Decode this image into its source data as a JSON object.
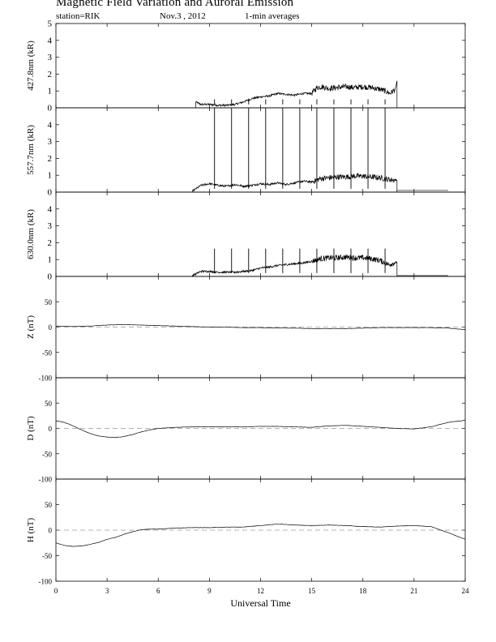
{
  "header": {
    "title": "Magnetic Field Variation and Auroral Emission",
    "station": "station=RIK",
    "date": "Nov.3 , 2012",
    "averaging": "1-min averages"
  },
  "chart_data": [
    {
      "type": "line",
      "ylabel": "427.8nm (kR)",
      "ylim": [
        0,
        5
      ],
      "yticks": [
        0,
        1,
        2,
        3,
        4,
        5
      ],
      "series": [
        {
          "x": [
            8.2,
            8.5,
            9,
            9.5,
            10,
            10.5,
            11,
            11.5,
            12,
            12.5,
            13,
            13.5,
            14,
            14.5,
            15,
            15.3,
            15.6,
            16,
            16.5,
            17,
            17.5,
            18,
            18.5,
            19,
            19.3,
            19.6,
            19.9,
            20.0
          ],
          "y": [
            0.35,
            0.2,
            0.2,
            0.15,
            0.15,
            0.2,
            0.35,
            0.55,
            0.65,
            0.7,
            0.85,
            0.8,
            0.75,
            0.85,
            0.85,
            1.2,
            1.25,
            1.15,
            1.2,
            1.25,
            1.2,
            1.25,
            1.2,
            1.1,
            1.0,
            0.85,
            1.1,
            1.6
          ]
        }
      ],
      "spikes": {
        "x": [
          9.3,
          10.3,
          11.3,
          12.3,
          13.3,
          14.3,
          15.3,
          16.3,
          17.3,
          18.3,
          19.3
        ],
        "y": 0.5
      }
    },
    {
      "type": "line",
      "ylabel": "557.7nm (kR)",
      "ylim": [
        0,
        5
      ],
      "yticks": [
        0,
        1,
        2,
        3,
        4
      ],
      "series": [
        {
          "x": [
            8.0,
            8.5,
            9,
            9.5,
            10,
            10.5,
            11,
            11.5,
            12,
            12.5,
            13,
            13.5,
            14,
            14.5,
            15,
            15.5,
            16,
            16.5,
            17,
            17.5,
            18,
            18.5,
            19,
            19.5,
            20.0
          ],
          "y": [
            0.05,
            0.4,
            0.5,
            0.4,
            0.35,
            0.45,
            0.35,
            0.4,
            0.5,
            0.45,
            0.55,
            0.45,
            0.55,
            0.65,
            0.6,
            0.8,
            0.85,
            0.9,
            0.9,
            0.95,
            0.95,
            0.9,
            0.85,
            0.75,
            0.7
          ]
        },
        {
          "x": [
            20.0,
            23.0
          ],
          "y": [
            0.1,
            0.1
          ]
        }
      ],
      "spikes": {
        "x": [
          9.3,
          10.3,
          11.3,
          12.3,
          13.3,
          14.3,
          15.3,
          16.3,
          17.3,
          18.3,
          19.3
        ],
        "y": 5.0
      }
    },
    {
      "type": "line",
      "ylabel": "630.0nm (kR)",
      "ylim": [
        0,
        5
      ],
      "yticks": [
        0,
        1,
        2,
        3,
        4
      ],
      "series": [
        {
          "x": [
            8.0,
            8.5,
            9,
            9.5,
            10,
            10.5,
            11,
            11.5,
            12,
            12.5,
            13,
            13.5,
            14,
            14.5,
            15,
            15.5,
            16,
            16.5,
            17,
            17.5,
            18,
            18.5,
            19,
            19.5,
            20.0
          ],
          "y": [
            0.05,
            0.3,
            0.3,
            0.25,
            0.25,
            0.25,
            0.3,
            0.35,
            0.5,
            0.55,
            0.65,
            0.7,
            0.75,
            0.8,
            0.9,
            1.05,
            1.1,
            1.1,
            1.15,
            1.1,
            1.1,
            1.05,
            0.95,
            0.7,
            0.85
          ]
        },
        {
          "x": [
            20.0,
            23.0
          ],
          "y": [
            0.05,
            0.05
          ]
        }
      ],
      "spikes": {
        "x": [
          9.3,
          10.3,
          11.3,
          12.3,
          13.3,
          14.3,
          15.3,
          16.3,
          17.3,
          18.3,
          19.3
        ],
        "y": 1.65
      }
    },
    {
      "type": "line",
      "ylabel": "Z (nT)",
      "ylim": [
        -100,
        100
      ],
      "yticks": [
        -100,
        -50,
        0,
        50
      ],
      "zero_line": true,
      "series": [
        {
          "x": [
            0,
            1,
            2,
            3,
            4,
            5,
            6,
            7,
            8,
            9,
            10,
            11,
            12,
            13,
            14,
            15,
            16,
            17,
            18,
            19,
            20,
            21,
            22,
            23,
            24
          ],
          "y": [
            2,
            1,
            2,
            4,
            5,
            4,
            3,
            2,
            1,
            0,
            0,
            -1,
            -1,
            -2,
            -2,
            -3,
            -3,
            -3,
            -2,
            -1,
            -1,
            -1,
            -1,
            -2,
            -5
          ]
        }
      ]
    },
    {
      "type": "line",
      "ylabel": "D (nT)",
      "ylim": [
        -100,
        100
      ],
      "yticks": [
        -100,
        -50,
        0,
        50
      ],
      "zero_line": true,
      "series": [
        {
          "x": [
            0,
            0.5,
            1,
            1.5,
            2,
            2.5,
            3,
            3.5,
            4,
            4.5,
            5,
            5.5,
            6,
            6.5,
            7,
            8,
            9,
            10,
            11,
            12,
            13,
            14,
            15,
            16,
            17,
            18,
            19,
            20,
            21,
            22,
            23,
            24
          ],
          "y": [
            15,
            12,
            5,
            -3,
            -10,
            -15,
            -17,
            -18,
            -16,
            -12,
            -7,
            -3,
            0,
            1,
            2,
            3,
            3,
            3,
            3,
            4,
            4,
            3,
            2,
            5,
            6,
            4,
            2,
            0,
            -1,
            3,
            12,
            16
          ]
        }
      ]
    },
    {
      "type": "line",
      "ylabel": "H (nT)",
      "ylim": [
        -100,
        100
      ],
      "yticks": [
        -100,
        -50,
        0,
        50
      ],
      "zero_line": true,
      "series": [
        {
          "x": [
            0,
            0.5,
            1,
            1.5,
            2,
            2.5,
            3,
            3.5,
            4,
            4.5,
            5,
            5.5,
            6,
            7,
            8,
            9,
            10,
            11,
            12,
            13,
            14,
            15,
            16,
            17,
            18,
            19,
            20,
            21,
            22,
            23,
            24
          ],
          "y": [
            -25,
            -30,
            -32,
            -31,
            -28,
            -24,
            -18,
            -14,
            -8,
            -3,
            1,
            2,
            2,
            4,
            5,
            5,
            6,
            6,
            9,
            12,
            10,
            9,
            10,
            9,
            7,
            6,
            8,
            9,
            7,
            -5,
            -18
          ]
        }
      ]
    }
  ],
  "x_axis": {
    "label": "Universal Time",
    "xlim": [
      0,
      24
    ],
    "ticks": [
      0,
      3,
      6,
      9,
      12,
      15,
      18,
      21,
      24
    ]
  }
}
